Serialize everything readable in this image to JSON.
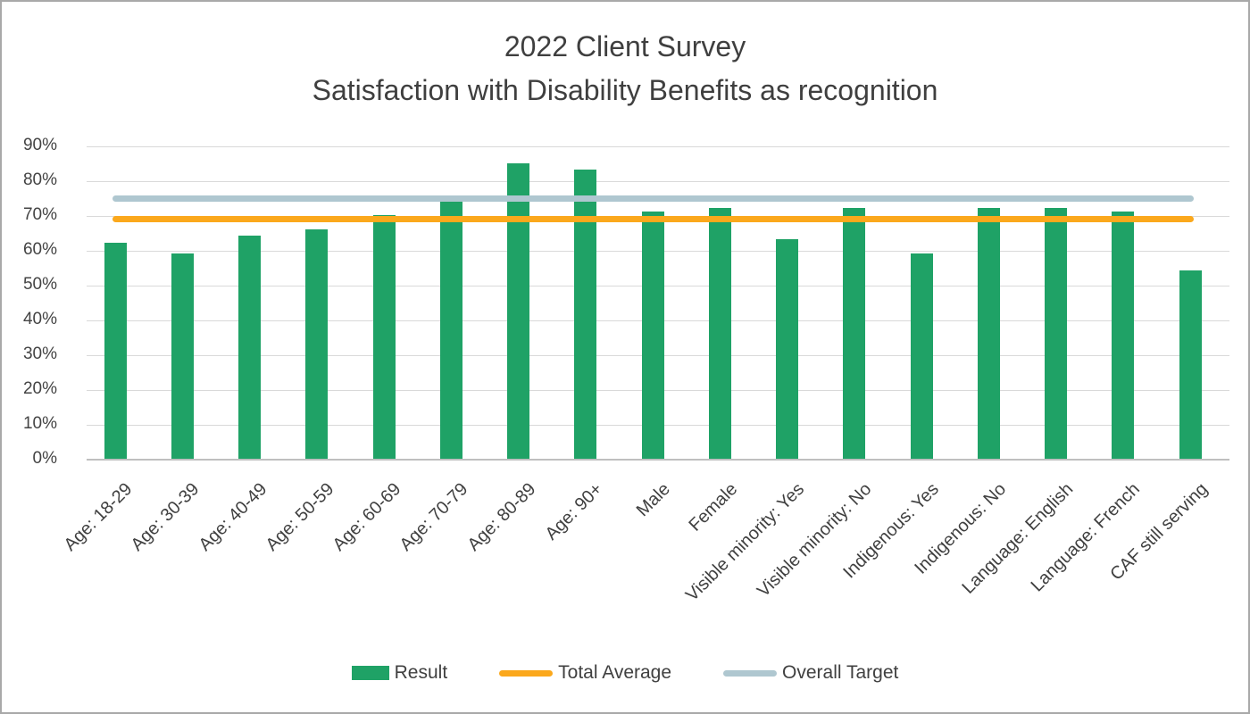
{
  "title": {
    "line1": "2022 Client Survey",
    "line2": "Satisfaction with Disability Benefits as recognition"
  },
  "chart_data": {
    "type": "bar",
    "title": "2022 Client Survey — Satisfaction with Disability Benefits as recognition",
    "categories": [
      "Age: 18-29",
      "Age: 30-39",
      "Age: 40-49",
      "Age: 50-59",
      "Age: 60-69",
      "Age: 70-79",
      "Age: 80-89",
      "Age: 90+",
      "Male",
      "Female",
      "Visible minority: Yes",
      "Visible minority: No",
      "Indigenous: Yes",
      "Indigenous: No",
      "Language: English",
      "Language: French",
      "CAF still serving"
    ],
    "series": [
      {
        "name": "Result",
        "type": "bar",
        "color": "#1fa266",
        "values": [
          62,
          59,
          64,
          66,
          70,
          74,
          85,
          83,
          71,
          72,
          63,
          72,
          59,
          72,
          72,
          71,
          54
        ]
      },
      {
        "name": "Total Average",
        "type": "line",
        "color": "#fba81c",
        "value": 69
      },
      {
        "name": "Overall Target",
        "type": "line",
        "color": "#afc7d0",
        "value": 75
      }
    ],
    "ylim": [
      0,
      90
    ],
    "ytick_step": 10,
    "yticks": [
      "0%",
      "10%",
      "20%",
      "30%",
      "40%",
      "50%",
      "60%",
      "70%",
      "80%",
      "90%"
    ],
    "grid": true,
    "legend_position": "bottom",
    "x_label_rotation_deg": 45
  },
  "legend": {
    "items": [
      {
        "label": "Result",
        "swatch": "rect",
        "color": "#1fa266"
      },
      {
        "label": "Total Average",
        "swatch": "line",
        "color": "#fba81c"
      },
      {
        "label": "Overall Target",
        "swatch": "line",
        "color": "#afc7d0"
      }
    ]
  },
  "colors": {
    "background": "#ffffff",
    "frame_border": "#a9a9a9",
    "gridline": "#d9d9d9",
    "axis_line": "#bfbfbf",
    "title_text": "#3f3f3f",
    "tick_text": "#444444"
  }
}
